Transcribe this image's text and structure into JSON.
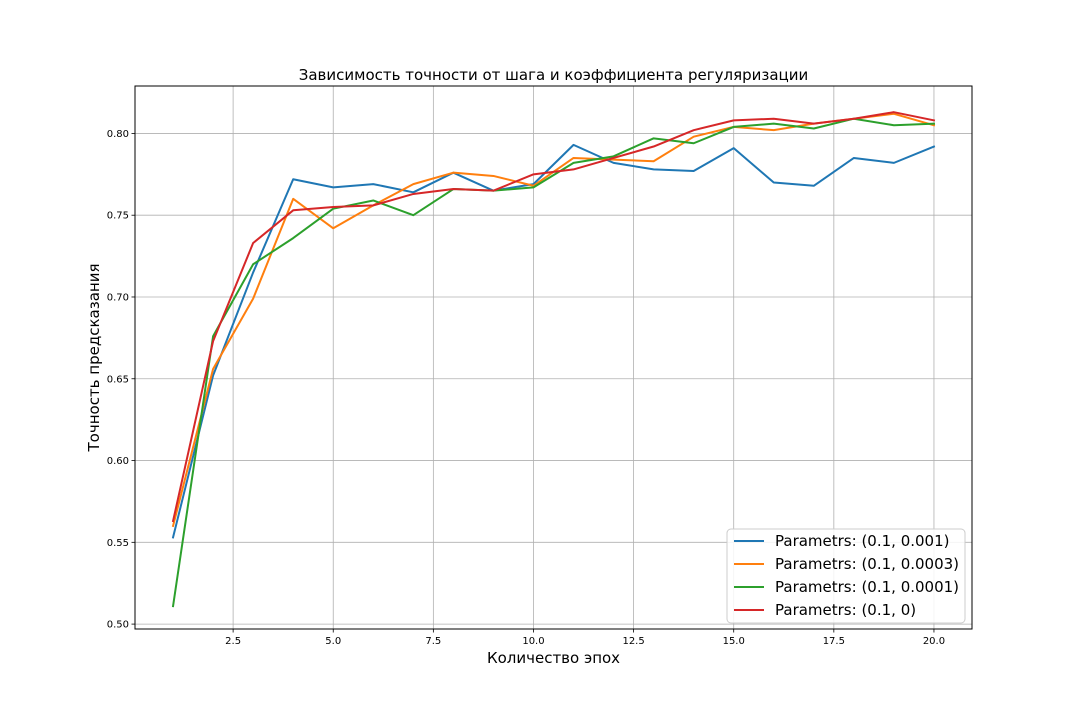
{
  "chart_data": {
    "type": "line",
    "title": "Зависимость точности от шага и коэффициента регуляризации",
    "xlabel": "Количество эпох",
    "ylabel": "Точность предсказания",
    "xlim": [
      0.05,
      20.95
    ],
    "ylim": [
      0.497,
      0.829
    ],
    "xticks": [
      2.5,
      5.0,
      7.5,
      10.0,
      12.5,
      15.0,
      17.5,
      20.0
    ],
    "xtick_labels": [
      "2.5",
      "5.0",
      "7.5",
      "10.0",
      "12.5",
      "15.0",
      "17.5",
      "20.0"
    ],
    "yticks": [
      0.5,
      0.55,
      0.6,
      0.65,
      0.7,
      0.75,
      0.8
    ],
    "ytick_labels": [
      "0.50",
      "0.55",
      "0.60",
      "0.65",
      "0.70",
      "0.75",
      "0.80"
    ],
    "grid": true,
    "legend_position": "bottom-right",
    "x": [
      1,
      2,
      3,
      4,
      5,
      6,
      7,
      8,
      9,
      10,
      11,
      12,
      13,
      14,
      15,
      16,
      17,
      18,
      19,
      20
    ],
    "series": [
      {
        "name": "Parametrs: (0.1, 0.001)",
        "color": "#1f77b4",
        "values": [
          0.553,
          0.652,
          0.715,
          0.772,
          0.767,
          0.769,
          0.764,
          0.776,
          0.765,
          0.769,
          0.793,
          0.782,
          0.778,
          0.777,
          0.791,
          0.77,
          0.768,
          0.785,
          0.782,
          0.792
        ]
      },
      {
        "name": "Parametrs: (0.1, 0.0003)",
        "color": "#ff7f0e",
        "values": [
          0.56,
          0.656,
          0.699,
          0.76,
          0.742,
          0.756,
          0.769,
          0.776,
          0.774,
          0.768,
          0.785,
          0.784,
          0.783,
          0.798,
          0.804,
          0.802,
          0.806,
          0.809,
          0.812,
          0.805
        ]
      },
      {
        "name": "Parametrs: (0.1, 0.0001)",
        "color": "#2ca02c",
        "values": [
          0.511,
          0.676,
          0.72,
          0.736,
          0.754,
          0.759,
          0.75,
          0.766,
          0.765,
          0.767,
          0.782,
          0.786,
          0.797,
          0.794,
          0.804,
          0.806,
          0.803,
          0.809,
          0.805,
          0.806
        ]
      },
      {
        "name": "Parametrs: (0.1, 0)",
        "color": "#d62728",
        "values": [
          0.563,
          0.673,
          0.733,
          0.753,
          0.755,
          0.756,
          0.763,
          0.766,
          0.765,
          0.775,
          0.778,
          0.785,
          0.792,
          0.802,
          0.808,
          0.809,
          0.806,
          0.809,
          0.813,
          0.808
        ]
      }
    ]
  }
}
